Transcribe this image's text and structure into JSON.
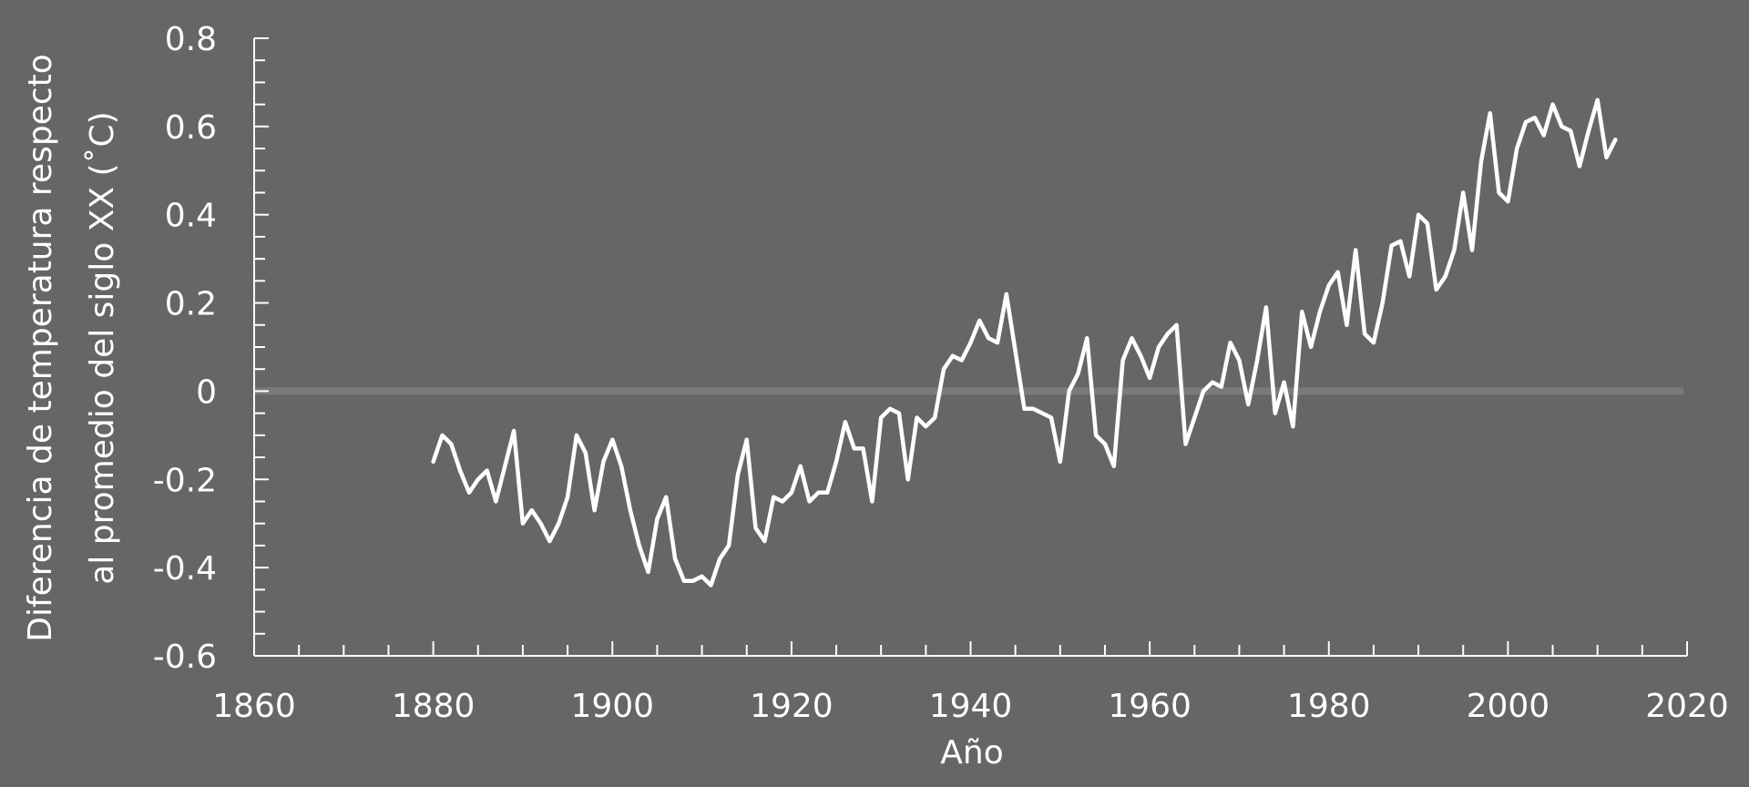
{
  "chart_data": {
    "type": "line",
    "title": "",
    "xlabel": "Año",
    "ylabel": [
      "Diferencia de temperatura respecto",
      "al promedio del siglo XX (˚C)"
    ],
    "xlim": [
      1860,
      2020
    ],
    "ylim": [
      -0.6,
      0.8
    ],
    "x_ticks": [
      1860,
      1880,
      1900,
      1920,
      1940,
      1960,
      1980,
      2000,
      2020
    ],
    "x_tick_labels": [
      "1860",
      "1880",
      "1900",
      "1920",
      "1940",
      "1960",
      "1980",
      "2000",
      "2020"
    ],
    "y_ticks": [
      -0.6,
      -0.4,
      -0.2,
      0,
      0.2,
      0.4,
      0.6,
      0.8
    ],
    "y_tick_labels": [
      "-0.6",
      "-0.4",
      "-0.2",
      "0",
      "0.2",
      "0.4",
      "0.6",
      "0.8"
    ],
    "grid": false,
    "zero_line": true,
    "colors": {
      "background": "#666666",
      "line": "#ffffff",
      "axis": "#ffffff",
      "zero_line": "#7a7a7a"
    },
    "series": [
      {
        "x": [
          1880,
          1881,
          1882,
          1883,
          1884,
          1885,
          1886,
          1887,
          1888,
          1889,
          1890,
          1891,
          1892,
          1893,
          1894,
          1895,
          1896,
          1897,
          1898,
          1899,
          1900,
          1901,
          1902,
          1903,
          1904,
          1905,
          1906,
          1907,
          1908,
          1909,
          1910,
          1911,
          1912,
          1913,
          1914,
          1915,
          1916,
          1917,
          1918,
          1919,
          1920,
          1921,
          1922,
          1923,
          1924,
          1925,
          1926,
          1927,
          1928,
          1929,
          1930,
          1931,
          1932,
          1933,
          1934,
          1935,
          1936,
          1937,
          1938,
          1939,
          1940,
          1941,
          1942,
          1943,
          1944,
          1945,
          1946,
          1947,
          1948,
          1949,
          1950,
          1951,
          1952,
          1953,
          1954,
          1955,
          1956,
          1957,
          1958,
          1959,
          1960,
          1961,
          1962,
          1963,
          1964,
          1965,
          1966,
          1967,
          1968,
          1969,
          1970,
          1971,
          1972,
          1973,
          1974,
          1975,
          1976,
          1977,
          1978,
          1979,
          1980,
          1981,
          1982,
          1983,
          1984,
          1985,
          1986,
          1987,
          1988,
          1989,
          1990,
          1991,
          1992,
          1993,
          1994,
          1995,
          1996,
          1997,
          1998,
          1999,
          2000,
          2001,
          2002,
          2003,
          2004,
          2005,
          2006,
          2007,
          2008,
          2009,
          2010,
          2011,
          2012
        ],
        "values": [
          -0.16,
          -0.1,
          -0.12,
          -0.18,
          -0.23,
          -0.2,
          -0.18,
          -0.25,
          -0.17,
          -0.09,
          -0.3,
          -0.27,
          -0.3,
          -0.34,
          -0.3,
          -0.24,
          -0.1,
          -0.14,
          -0.27,
          -0.16,
          -0.11,
          -0.17,
          -0.27,
          -0.35,
          -0.41,
          -0.29,
          -0.24,
          -0.38,
          -0.43,
          -0.43,
          -0.42,
          -0.44,
          -0.38,
          -0.35,
          -0.19,
          -0.11,
          -0.31,
          -0.34,
          -0.24,
          -0.25,
          -0.23,
          -0.17,
          -0.25,
          -0.23,
          -0.23,
          -0.16,
          -0.07,
          -0.13,
          -0.13,
          -0.25,
          -0.06,
          -0.04,
          -0.05,
          -0.2,
          -0.06,
          -0.08,
          -0.06,
          0.05,
          0.08,
          0.07,
          0.11,
          0.16,
          0.12,
          0.11,
          0.22,
          0.09,
          -0.04,
          -0.04,
          -0.05,
          -0.06,
          -0.16,
          0.0,
          0.04,
          0.12,
          -0.1,
          -0.12,
          -0.17,
          0.07,
          0.12,
          0.08,
          0.03,
          0.1,
          0.13,
          0.15,
          -0.12,
          -0.06,
          0.0,
          0.02,
          0.01,
          0.11,
          0.07,
          -0.03,
          0.07,
          0.19,
          -0.05,
          0.02,
          -0.08,
          0.18,
          0.1,
          0.18,
          0.24,
          0.27,
          0.15,
          0.32,
          0.13,
          0.11,
          0.2,
          0.33,
          0.34,
          0.26,
          0.4,
          0.38,
          0.23,
          0.26,
          0.32,
          0.45,
          0.32,
          0.52,
          0.63,
          0.45,
          0.43,
          0.55,
          0.61,
          0.62,
          0.58,
          0.65,
          0.6,
          0.59,
          0.51,
          0.59,
          0.66,
          0.53,
          0.57
        ]
      }
    ]
  }
}
